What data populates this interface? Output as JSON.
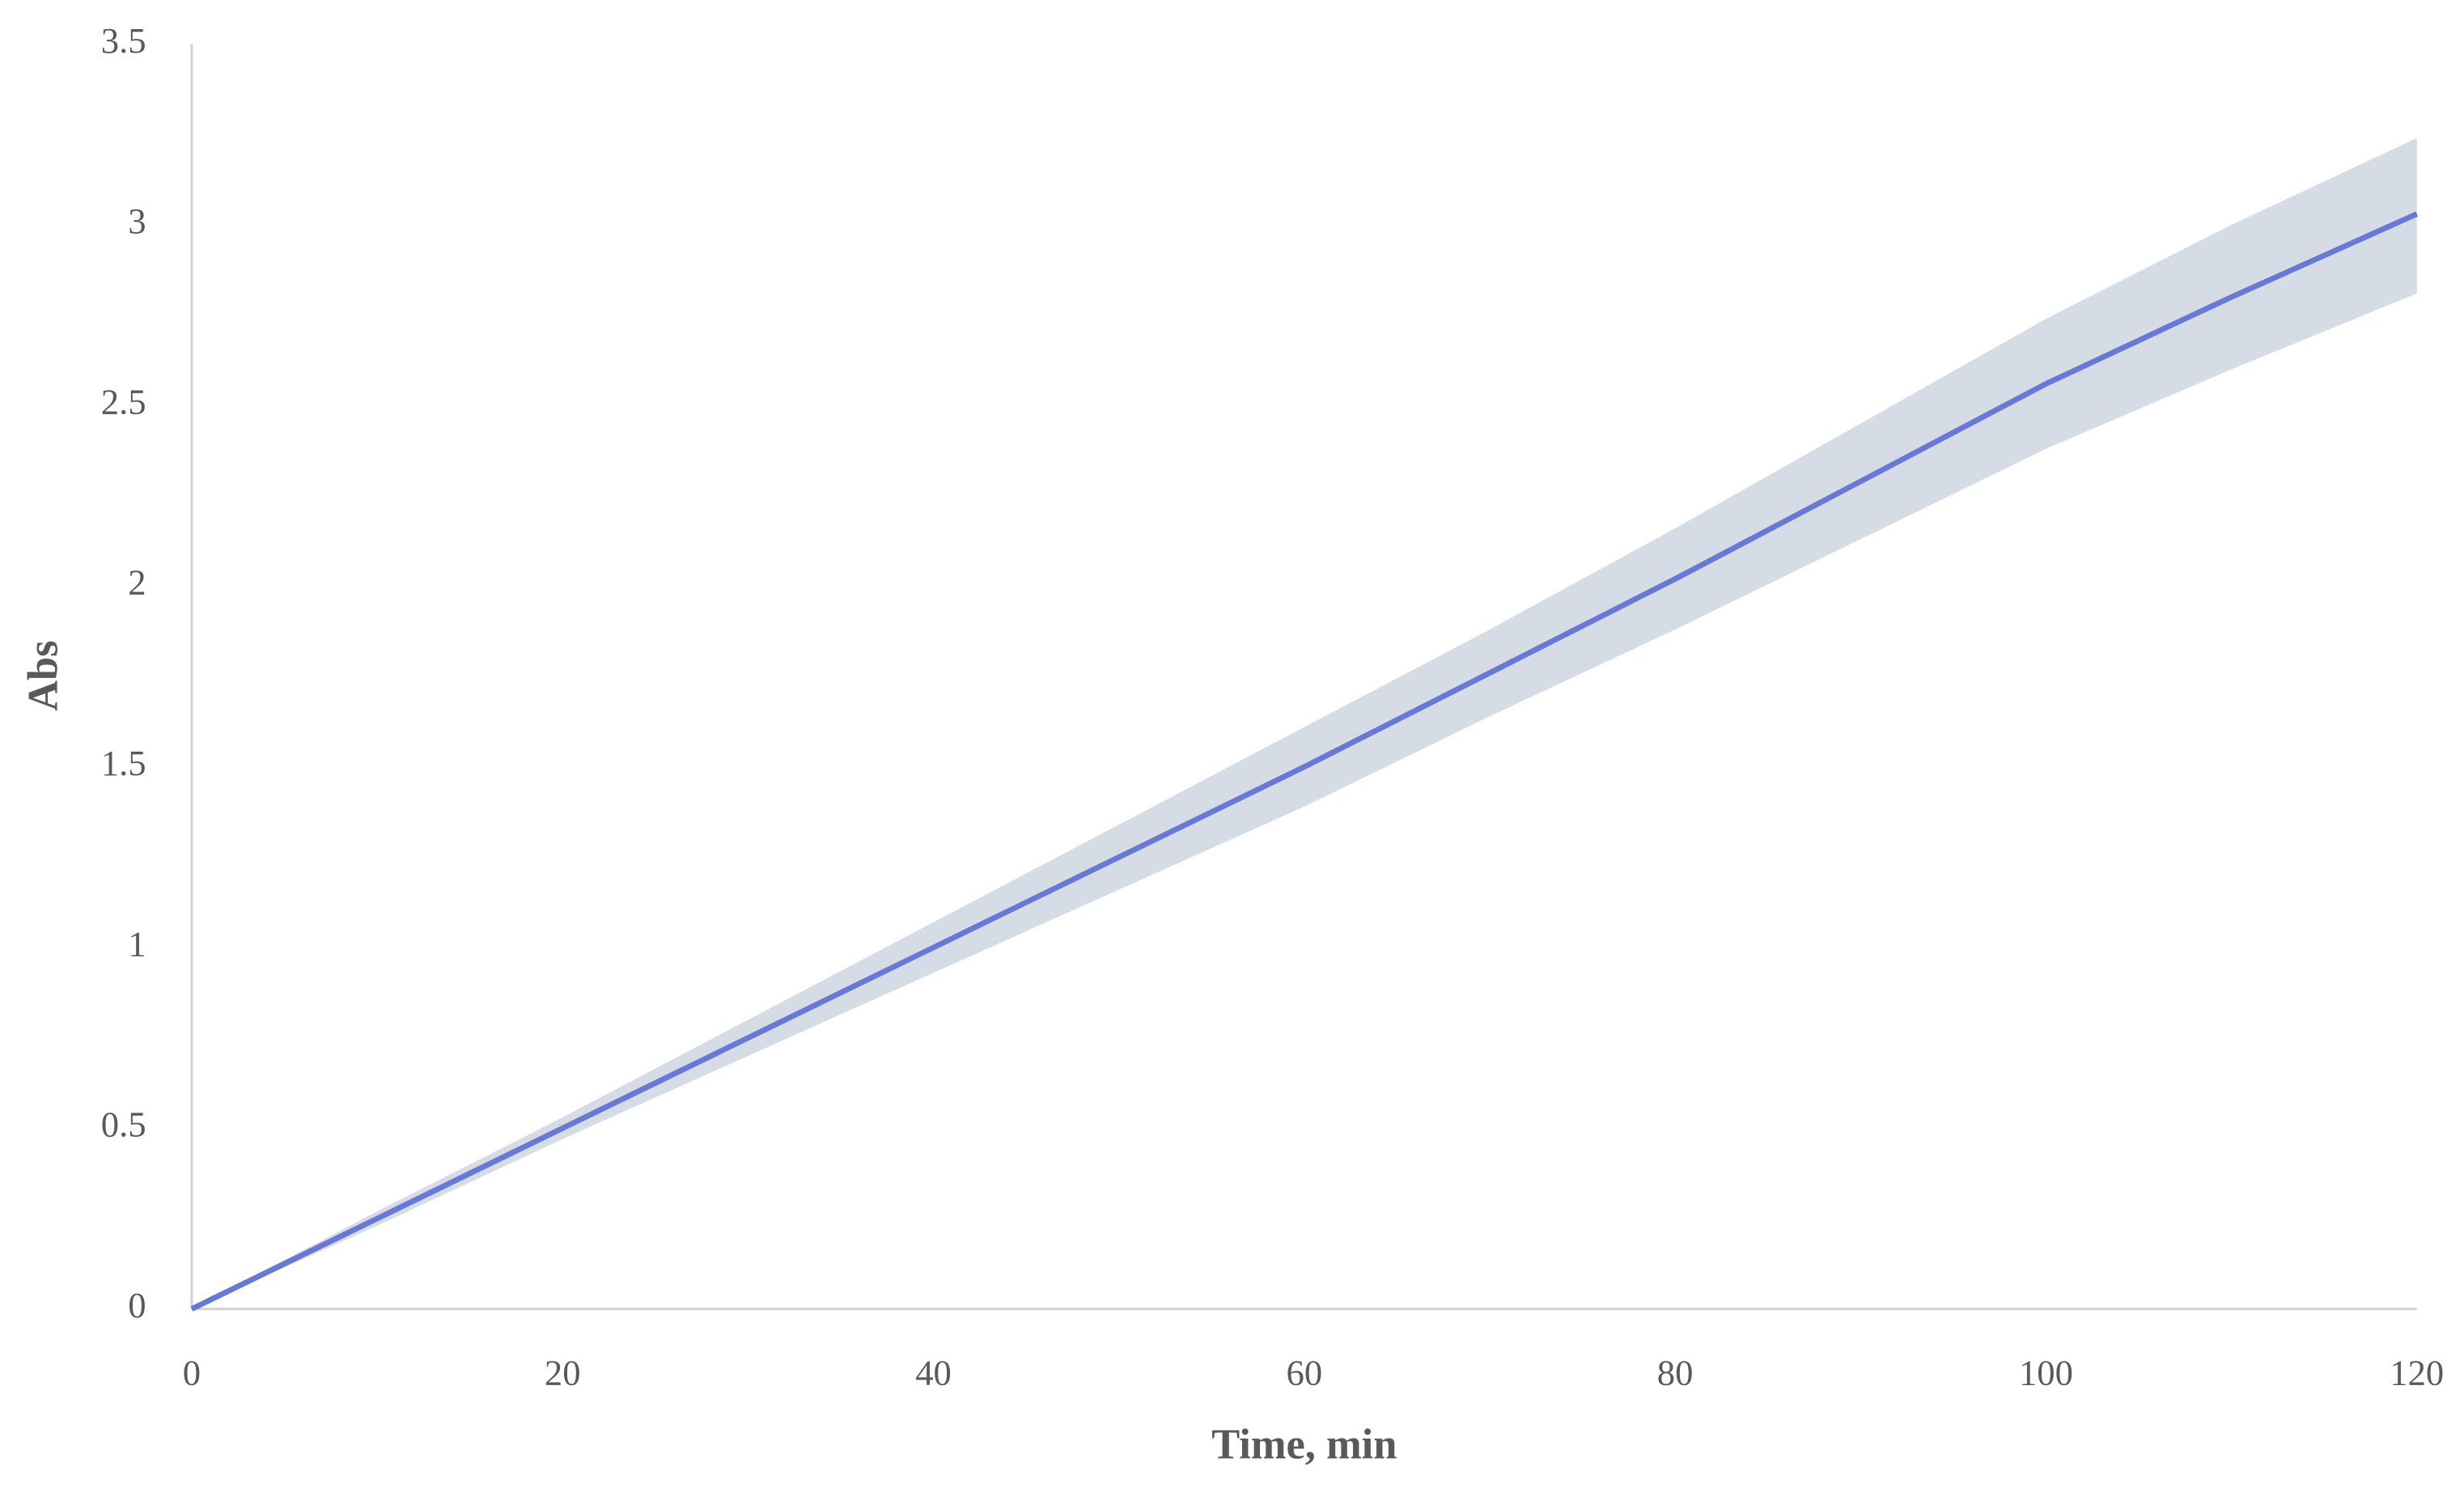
{
  "chart_data": {
    "type": "line",
    "x_label": "Time, min",
    "y_label": "Abs",
    "x": [
      0,
      10,
      20,
      30,
      40,
      50,
      60,
      70,
      80,
      90,
      100,
      110,
      120
    ],
    "values": [
      0,
      0.25,
      0.5,
      0.75,
      1.0,
      1.25,
      1.5,
      1.76,
      2.02,
      2.29,
      2.56,
      2.8,
      3.03
    ],
    "upper": [
      0,
      0.27,
      0.53,
      0.8,
      1.07,
      1.34,
      1.61,
      1.88,
      2.16,
      2.45,
      2.74,
      3.0,
      3.24
    ],
    "lower": [
      0,
      0.23,
      0.47,
      0.7,
      0.93,
      1.16,
      1.39,
      1.64,
      1.88,
      2.13,
      2.38,
      2.6,
      2.81
    ],
    "color": "#6878d6",
    "band_color": "#d5dce6",
    "xlim": [
      0,
      120
    ],
    "xticks": [
      0,
      20,
      40,
      60,
      80,
      100,
      120
    ],
    "ylim": [
      0,
      3.5
    ],
    "yticks": [
      0,
      0.5,
      1,
      1.5,
      2,
      2.5,
      3,
      3.5
    ],
    "grid": false
  }
}
